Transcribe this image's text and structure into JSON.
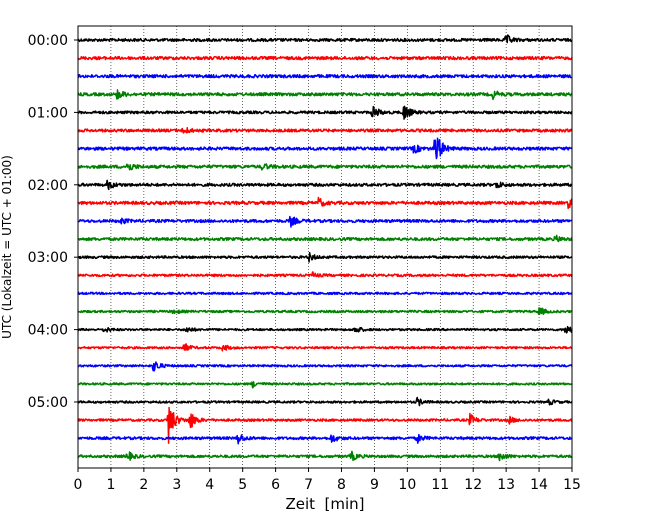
{
  "chart_data": {
    "type": "line",
    "title": "",
    "xlabel": "Zeit  [min]",
    "ylabel": "UTC (Lokalzeit = UTC + 01:00)",
    "xlim": [
      0,
      15
    ],
    "x_ticks": [
      "0",
      "1",
      "2",
      "3",
      "4",
      "5",
      "6",
      "7",
      "8",
      "9",
      "10",
      "11",
      "12",
      "13",
      "14",
      "15"
    ],
    "y_tick_labels": [
      "00:00",
      "01:00",
      "02:00",
      "03:00",
      "04:00",
      "05:00"
    ],
    "trace_interval_minutes": 15,
    "grid": "vertical dotted lines at each minute",
    "trace_colors": [
      "#000000",
      "#ff0000",
      "#0000ff",
      "#008000"
    ],
    "series": [
      {
        "start": "00:00",
        "noise": 0.6,
        "events": [
          {
            "t": 13.0,
            "amp": 1.6
          }
        ]
      },
      {
        "start": "00:15",
        "noise": 0.7,
        "events": []
      },
      {
        "start": "00:30",
        "noise": 0.7,
        "events": []
      },
      {
        "start": "00:45",
        "noise": 0.7,
        "events": [
          {
            "t": 1.2,
            "amp": 1.5
          },
          {
            "t": 12.6,
            "amp": 1.2
          }
        ]
      },
      {
        "start": "01:00",
        "noise": 0.5,
        "events": [
          {
            "t": 8.95,
            "amp": 2.2
          },
          {
            "t": 9.9,
            "amp": 2.8
          }
        ]
      },
      {
        "start": "01:15",
        "noise": 0.6,
        "events": [
          {
            "t": 3.2,
            "amp": 1.2
          }
        ]
      },
      {
        "start": "01:30",
        "noise": 0.7,
        "events": [
          {
            "t": 10.85,
            "amp": 6.5
          },
          {
            "t": 10.2,
            "amp": 1.4
          }
        ]
      },
      {
        "start": "01:45",
        "noise": 0.7,
        "events": [
          {
            "t": 1.5,
            "amp": 1.6
          },
          {
            "t": 5.6,
            "amp": 1.0
          }
        ]
      },
      {
        "start": "02:00",
        "noise": 0.6,
        "events": [
          {
            "t": 0.9,
            "amp": 1.5
          },
          {
            "t": 12.7,
            "amp": 1.1
          }
        ]
      },
      {
        "start": "02:15",
        "noise": 0.7,
        "events": [
          {
            "t": 7.3,
            "amp": 1.4
          },
          {
            "t": 14.9,
            "amp": 2.0
          }
        ]
      },
      {
        "start": "02:30",
        "noise": 0.6,
        "events": [
          {
            "t": 6.45,
            "amp": 1.7
          },
          {
            "t": 1.3,
            "amp": 0.9
          }
        ]
      },
      {
        "start": "02:45",
        "noise": 0.6,
        "events": [
          {
            "t": 14.5,
            "amp": 1.0
          }
        ]
      },
      {
        "start": "03:00",
        "noise": 0.4,
        "events": [
          {
            "t": 7.0,
            "amp": 1.4
          }
        ]
      },
      {
        "start": "03:15",
        "noise": 0.35,
        "events": [
          {
            "t": 7.1,
            "amp": 0.9
          }
        ]
      },
      {
        "start": "03:30",
        "noise": 0.25,
        "events": []
      },
      {
        "start": "03:45",
        "noise": 0.25,
        "events": [
          {
            "t": 14.0,
            "amp": 1.4
          },
          {
            "t": 2.9,
            "amp": 0.8
          }
        ]
      },
      {
        "start": "04:00",
        "noise": 0.2,
        "events": [
          {
            "t": 0.8,
            "amp": 0.9
          },
          {
            "t": 3.3,
            "amp": 1.0
          },
          {
            "t": 8.4,
            "amp": 1.4
          },
          {
            "t": 14.8,
            "amp": 1.8
          }
        ]
      },
      {
        "start": "04:15",
        "noise": 0.2,
        "events": [
          {
            "t": 3.2,
            "amp": 1.6
          },
          {
            "t": 4.4,
            "amp": 1.0
          }
        ]
      },
      {
        "start": "04:30",
        "noise": 0.2,
        "events": [
          {
            "t": 2.3,
            "amp": 2.2
          }
        ]
      },
      {
        "start": "04:45",
        "noise": 0.2,
        "events": [
          {
            "t": 5.3,
            "amp": 1.0
          }
        ]
      },
      {
        "start": "05:00",
        "noise": 0.25,
        "events": [
          {
            "t": 10.3,
            "amp": 1.3
          },
          {
            "t": 14.3,
            "amp": 0.9
          }
        ]
      },
      {
        "start": "05:15",
        "noise": 0.35,
        "events": [
          {
            "t": 2.75,
            "amp": 7.0
          },
          {
            "t": 3.4,
            "amp": 3.0
          },
          {
            "t": 11.9,
            "amp": 1.8
          },
          {
            "t": 13.1,
            "amp": 1.0
          }
        ]
      },
      {
        "start": "05:30",
        "noise": 0.5,
        "events": [
          {
            "t": 4.85,
            "amp": 1.8
          },
          {
            "t": 7.7,
            "amp": 1.3
          },
          {
            "t": 10.3,
            "amp": 1.3
          }
        ]
      },
      {
        "start": "05:45",
        "noise": 0.45,
        "events": [
          {
            "t": 1.5,
            "amp": 1.5
          },
          {
            "t": 8.3,
            "amp": 1.4
          },
          {
            "t": 12.8,
            "amp": 1.5
          }
        ]
      }
    ]
  }
}
